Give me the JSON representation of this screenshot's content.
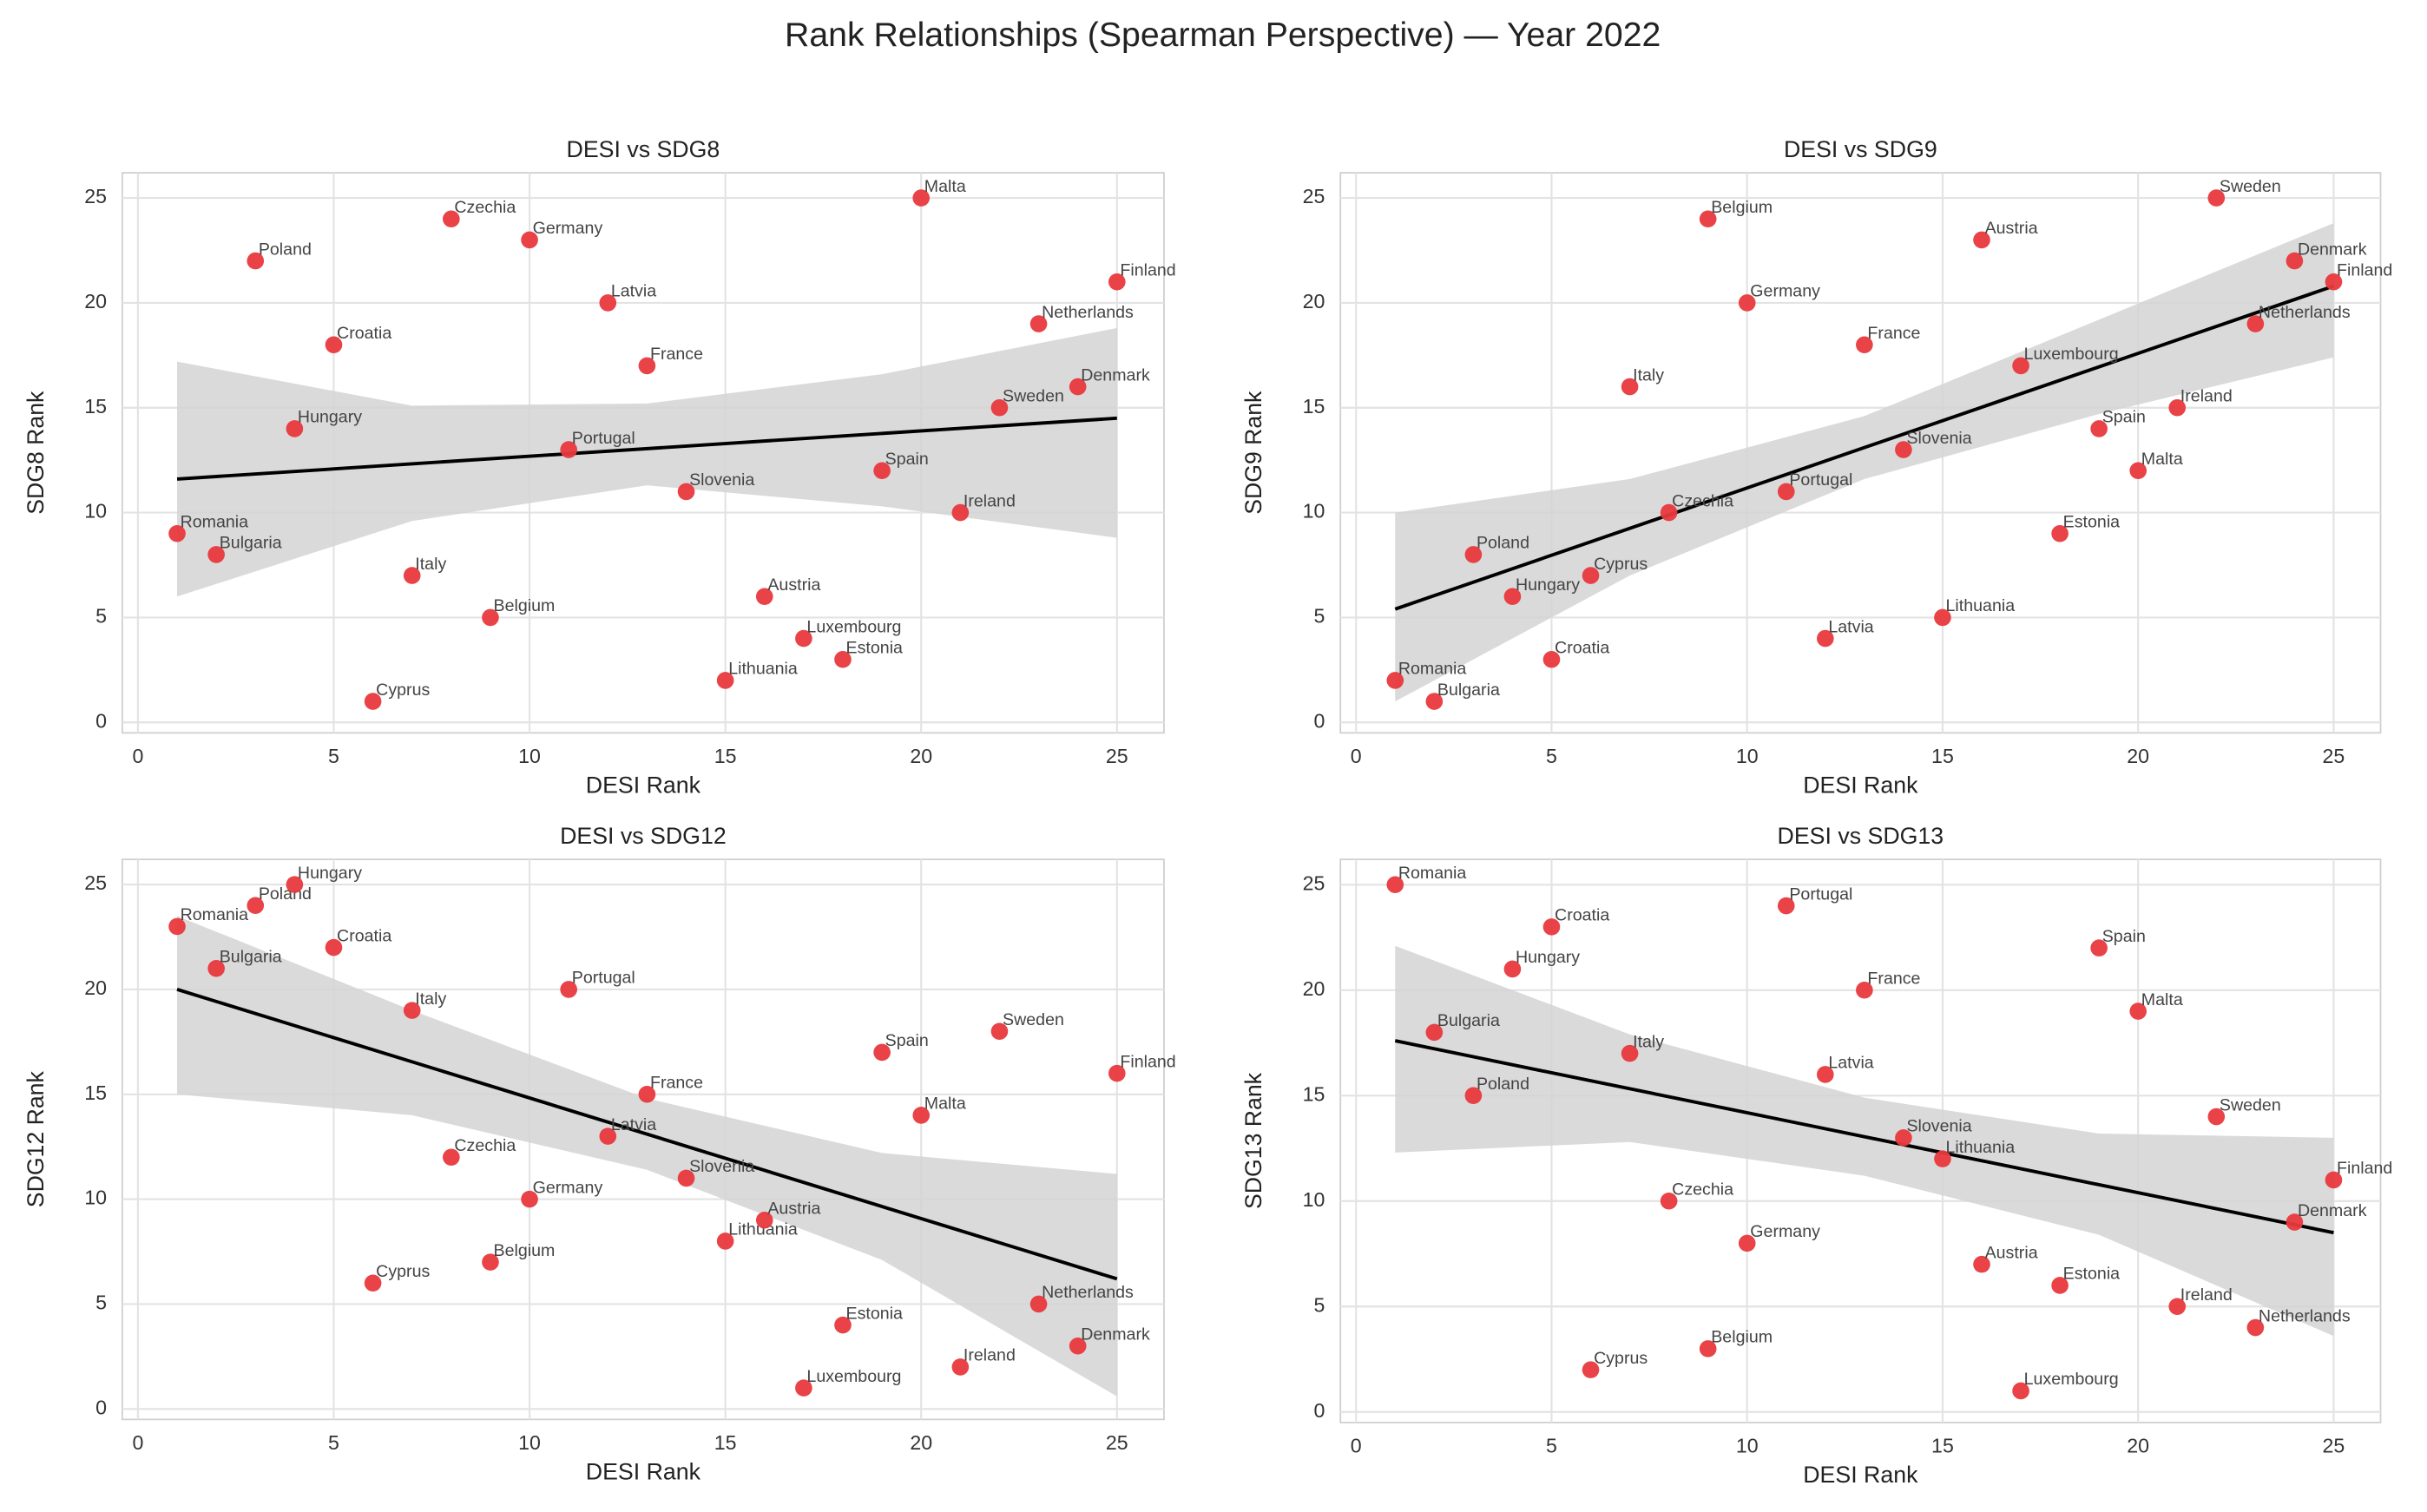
{
  "title": "Rank Relationships (Spearman Perspective) — Year 2022",
  "chart_data": [
    {
      "type": "scatter",
      "title": "DESI vs SDG8",
      "x_label": "DESI Rank",
      "y_label": "SDG8 Rank",
      "labels": [
        "Romania",
        "Bulgaria",
        "Poland",
        "Hungary",
        "Croatia",
        "Cyprus",
        "Italy",
        "Czechia",
        "Belgium",
        "Germany",
        "Portugal",
        "Latvia",
        "France",
        "Slovenia",
        "Lithuania",
        "Austria",
        "Luxembourg",
        "Estonia",
        "Spain",
        "Malta",
        "Ireland",
        "Sweden",
        "Netherlands",
        "Denmark",
        "Finland"
      ],
      "x": [
        1,
        2,
        3,
        4,
        5,
        6,
        7,
        8,
        9,
        10,
        11,
        12,
        13,
        14,
        15,
        16,
        17,
        18,
        19,
        20,
        21,
        22,
        23,
        24,
        25
      ],
      "values": [
        9,
        8,
        22,
        14,
        18,
        1,
        7,
        24,
        5,
        23,
        13,
        20,
        17,
        11,
        2,
        6,
        4,
        3,
        12,
        25,
        10,
        15,
        19,
        16,
        21
      ],
      "trend": {
        "x": [
          1,
          25
        ],
        "values": [
          11.6,
          14.5
        ]
      },
      "band": {
        "x": [
          1,
          7,
          13,
          19,
          25
        ],
        "lower": [
          6,
          9.6,
          11.3,
          10.3,
          8.8
        ],
        "upper": [
          17.2,
          15.1,
          15.2,
          16.6,
          18.8
        ]
      },
      "color": "#e8383d",
      "trend_color": "#000000",
      "band_color": "#d4d4d4",
      "xlim": [
        -0.4,
        26.2
      ],
      "ylim": [
        -0.5,
        26.2
      ],
      "xticks": [
        0,
        5,
        10,
        15,
        20,
        25
      ],
      "yticks": [
        0,
        5,
        10,
        15,
        20,
        25
      ],
      "grid": true
    },
    {
      "type": "scatter",
      "title": "DESI vs SDG9",
      "x_label": "DESI Rank",
      "y_label": "SDG9 Rank",
      "labels": [
        "Romania",
        "Bulgaria",
        "Poland",
        "Hungary",
        "Croatia",
        "Cyprus",
        "Italy",
        "Czechia",
        "Belgium",
        "Germany",
        "Portugal",
        "Latvia",
        "France",
        "Slovenia",
        "Lithuania",
        "Austria",
        "Luxembourg",
        "Estonia",
        "Spain",
        "Malta",
        "Ireland",
        "Sweden",
        "Netherlands",
        "Denmark",
        "Finland"
      ],
      "x": [
        1,
        2,
        3,
        4,
        5,
        6,
        7,
        8,
        9,
        10,
        11,
        12,
        13,
        14,
        15,
        16,
        17,
        18,
        19,
        20,
        21,
        22,
        23,
        24,
        25
      ],
      "values": [
        2,
        1,
        8,
        6,
        3,
        7,
        16,
        10,
        24,
        20,
        11,
        4,
        18,
        13,
        5,
        23,
        17,
        9,
        14,
        12,
        15,
        25,
        19,
        22,
        21
      ],
      "trend": {
        "x": [
          1,
          25
        ],
        "values": [
          5.4,
          20.8
        ]
      },
      "band": {
        "x": [
          1,
          7,
          13,
          19,
          25
        ],
        "lower": [
          1,
          7,
          11.6,
          14.7,
          17.4
        ],
        "upper": [
          10,
          11.6,
          14.6,
          19.2,
          23.8
        ]
      },
      "color": "#e8383d",
      "trend_color": "#000000",
      "band_color": "#d4d4d4",
      "xlim": [
        -0.4,
        26.2
      ],
      "ylim": [
        -0.5,
        26.2
      ],
      "xticks": [
        0,
        5,
        10,
        15,
        20,
        25
      ],
      "yticks": [
        0,
        5,
        10,
        15,
        20,
        25
      ],
      "grid": true
    },
    {
      "type": "scatter",
      "title": "DESI vs SDG12",
      "x_label": "DESI Rank",
      "y_label": "SDG12 Rank",
      "labels": [
        "Romania",
        "Bulgaria",
        "Poland",
        "Hungary",
        "Croatia",
        "Cyprus",
        "Italy",
        "Czechia",
        "Belgium",
        "Germany",
        "Portugal",
        "Latvia",
        "France",
        "Slovenia",
        "Lithuania",
        "Austria",
        "Luxembourg",
        "Estonia",
        "Spain",
        "Malta",
        "Ireland",
        "Sweden",
        "Netherlands",
        "Denmark",
        "Finland"
      ],
      "x": [
        1,
        2,
        3,
        4,
        5,
        6,
        7,
        8,
        9,
        10,
        11,
        12,
        13,
        14,
        15,
        16,
        17,
        18,
        19,
        20,
        21,
        22,
        23,
        24,
        25
      ],
      "values": [
        23,
        21,
        24,
        25,
        22,
        6,
        19,
        12,
        7,
        10,
        20,
        13,
        15,
        11,
        8,
        9,
        1,
        4,
        17,
        14,
        2,
        18,
        5,
        3,
        16
      ],
      "trend": {
        "x": [
          1,
          25
        ],
        "values": [
          20,
          6.2
        ]
      },
      "band": {
        "x": [
          1,
          7,
          13,
          19,
          25
        ],
        "lower": [
          15,
          14,
          11.4,
          7.1,
          0.6
        ],
        "upper": [
          23.5,
          19,
          14.8,
          12.2,
          11.2
        ]
      },
      "color": "#e8383d",
      "trend_color": "#000000",
      "band_color": "#d4d4d4",
      "xlim": [
        -0.4,
        26.2
      ],
      "ylim": [
        -0.5,
        26.2
      ],
      "xticks": [
        0,
        5,
        10,
        15,
        20,
        25
      ],
      "yticks": [
        0,
        5,
        10,
        15,
        20,
        25
      ],
      "grid": true
    },
    {
      "type": "scatter",
      "title": "DESI vs SDG13",
      "x_label": "DESI Rank",
      "y_label": "SDG13 Rank",
      "labels": [
        "Romania",
        "Bulgaria",
        "Poland",
        "Hungary",
        "Croatia",
        "Cyprus",
        "Italy",
        "Czechia",
        "Belgium",
        "Germany",
        "Portugal",
        "Latvia",
        "France",
        "Slovenia",
        "Lithuania",
        "Austria",
        "Luxembourg",
        "Estonia",
        "Spain",
        "Malta",
        "Ireland",
        "Sweden",
        "Netherlands",
        "Denmark",
        "Finland"
      ],
      "x": [
        1,
        2,
        3,
        4,
        5,
        6,
        7,
        8,
        9,
        10,
        11,
        12,
        13,
        14,
        15,
        16,
        17,
        18,
        19,
        20,
        21,
        22,
        23,
        24,
        25
      ],
      "values": [
        25,
        18,
        15,
        21,
        23,
        2,
        17,
        10,
        3,
        8,
        24,
        16,
        20,
        13,
        12,
        7,
        1,
        6,
        22,
        19,
        5,
        14,
        4,
        9,
        11
      ],
      "trend": {
        "x": [
          1,
          25
        ],
        "values": [
          17.6,
          8.5
        ]
      },
      "band": {
        "x": [
          1,
          7,
          13,
          19,
          25
        ],
        "lower": [
          12.3,
          12.8,
          11.2,
          8.4,
          3.6
        ],
        "upper": [
          22.1,
          17.9,
          14.9,
          13.2,
          13
        ]
      },
      "color": "#e8383d",
      "trend_color": "#000000",
      "band_color": "#d4d4d4",
      "xlim": [
        -0.4,
        26.2
      ],
      "ylim": [
        -0.5,
        26.2
      ],
      "xticks": [
        0,
        5,
        10,
        15,
        20,
        25
      ],
      "yticks": [
        0,
        5,
        10,
        15,
        20,
        25
      ],
      "grid": true
    }
  ]
}
